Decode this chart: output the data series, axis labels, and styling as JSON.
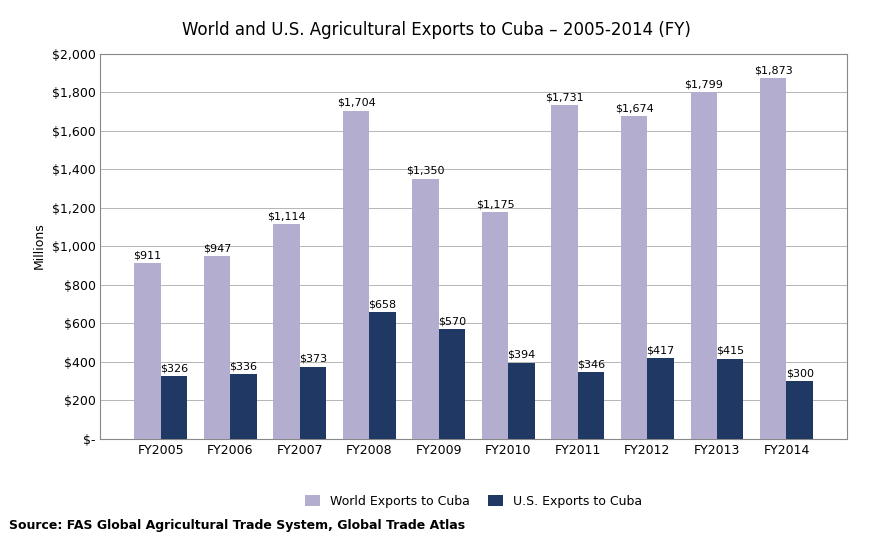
{
  "title": "World and U.S. Agricultural Exports to Cuba – 2005-2014 (FY)",
  "ylabel": "Millions",
  "source": "Source: FAS Global Agricultural Trade System, Global Trade Atlas",
  "categories": [
    "FY2005",
    "FY2006",
    "FY2007",
    "FY2008",
    "FY2009",
    "FY2010",
    "FY2011",
    "FY2012",
    "FY2013",
    "FY2014"
  ],
  "world_exports": [
    911,
    947,
    1114,
    1704,
    1350,
    1175,
    1731,
    1674,
    1799,
    1873
  ],
  "us_exports": [
    326,
    336,
    373,
    658,
    570,
    394,
    346,
    417,
    415,
    300
  ],
  "world_color": "#b3aed0",
  "us_color": "#1f3864",
  "legend_labels": [
    "World Exports to Cuba",
    "U.S. Exports to Cuba"
  ],
  "ylim": [
    0,
    2000
  ],
  "yticks": [
    0,
    200,
    400,
    600,
    800,
    1000,
    1200,
    1400,
    1600,
    1800,
    2000
  ],
  "ytick_labels": [
    "$-",
    "$200",
    "$400",
    "$600",
    "$800",
    "$1,000",
    "$1,200",
    "$1,400",
    "$1,600",
    "$1,800",
    "$2,000"
  ],
  "bar_width": 0.38,
  "title_fontsize": 12,
  "axis_label_fontsize": 9,
  "tick_fontsize": 9,
  "annotation_fontsize": 8,
  "legend_fontsize": 9,
  "source_fontsize": 9,
  "background_color": "#ffffff",
  "plot_bg_color": "#ffffff",
  "grid_color": "#aaaaaa",
  "border_color": "#888888"
}
